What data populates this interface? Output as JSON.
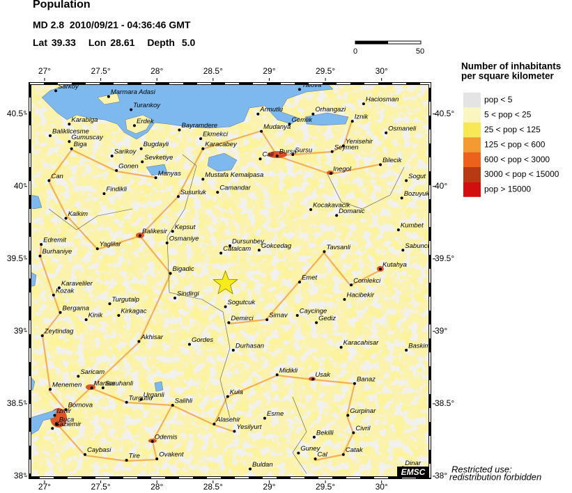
{
  "header": {
    "title": "Population",
    "event": "MD 2.8  2010/09/21 - 04:36:46 GMT",
    "lat_label": "Lat",
    "lat": 39.33,
    "lon_label": "Lon",
    "lon": 28.61,
    "depth_label": "Depth",
    "depth": "5.0"
  },
  "scale": {
    "labels": [
      "0",
      "50"
    ]
  },
  "map": {
    "lonlim": [
      26.87,
      30.43
    ],
    "latlim": [
      37.99,
      40.71
    ],
    "xticks": [
      {
        "value": 27,
        "label": "27°"
      },
      {
        "value": 27.5,
        "label": "27.5°"
      },
      {
        "value": 28,
        "label": "28°"
      },
      {
        "value": 28.5,
        "label": "28.5°"
      },
      {
        "value": 29,
        "label": "29°"
      },
      {
        "value": 29.5,
        "label": "29.5°"
      },
      {
        "value": 30,
        "label": "30°"
      }
    ],
    "yticks": [
      {
        "value": 38,
        "label": "38°"
      },
      {
        "value": 38.5,
        "label": "38.5°"
      },
      {
        "value": 39,
        "label": "39°"
      },
      {
        "value": 39.5,
        "label": "39.5°"
      },
      {
        "value": 40,
        "label": "40°"
      },
      {
        "value": 40.5,
        "label": "40.5°"
      }
    ]
  },
  "legend": {
    "title": [
      "Number of inhabitants",
      "per square kilometer"
    ],
    "items": [
      {
        "name": "pop < 5",
        "color": "#e4e4e4"
      },
      {
        "name": "5 < pop < 25",
        "color": "#fbf6bf"
      },
      {
        "name": "25 < pop < 125",
        "color": "#f8e855"
      },
      {
        "name": "125 < pop < 600",
        "color": "#f39a30"
      },
      {
        "name": "600 < pop < 3000",
        "color": "#ec621b"
      },
      {
        "name": "3000 < pop < 15000",
        "color": "#b73a12"
      },
      {
        "name": "pop > 15000",
        "color": "#d20f0f"
      }
    ]
  },
  "cities": [
    {
      "name": "Sarkoy",
      "lon": 27.1,
      "lat": 40.66
    },
    {
      "name": "Marmara Adasi",
      "lon": 27.57,
      "lat": 40.62
    },
    {
      "name": "Turankoy",
      "lon": 27.77,
      "lat": 40.53
    },
    {
      "name": "Karabiga",
      "lon": 27.22,
      "lat": 40.43
    },
    {
      "name": "Erdek",
      "lon": 27.8,
      "lat": 40.42
    },
    {
      "name": "Baliklicesme",
      "lon": 27.05,
      "lat": 40.35
    },
    {
      "name": "Gumuscay",
      "lon": 27.22,
      "lat": 40.31
    },
    {
      "name": "Biga",
      "lon": 27.24,
      "lat": 40.26
    },
    {
      "name": "Sarikoy",
      "lon": 27.6,
      "lat": 40.21
    },
    {
      "name": "Bugdayli",
      "lon": 27.86,
      "lat": 40.26
    },
    {
      "name": "Gonen",
      "lon": 27.64,
      "lat": 40.11
    },
    {
      "name": "Sevketiye",
      "lon": 27.87,
      "lat": 40.17
    },
    {
      "name": "Can",
      "lon": 27.04,
      "lat": 40.04
    },
    {
      "name": "Manyas",
      "lon": 27.99,
      "lat": 40.06
    },
    {
      "name": "Findikli",
      "lon": 27.53,
      "lat": 39.95
    },
    {
      "name": "Bayramdere",
      "lon": 28.2,
      "lat": 40.39
    },
    {
      "name": "Ekmekci",
      "lon": 28.39,
      "lat": 40.33
    },
    {
      "name": "Karacabey",
      "lon": 28.41,
      "lat": 40.26
    },
    {
      "name": "Armutlu",
      "lon": 28.9,
      "lat": 40.5
    },
    {
      "name": "Mudanya",
      "lon": 28.93,
      "lat": 40.38
    },
    {
      "name": "Gemlik",
      "lon": 29.18,
      "lat": 40.43
    },
    {
      "name": "Orhangazi",
      "lon": 29.39,
      "lat": 40.5
    },
    {
      "name": "Yalova",
      "lon": 29.27,
      "lat": 40.67
    },
    {
      "name": "Haciosman",
      "lon": 29.84,
      "lat": 40.57
    },
    {
      "name": "Iznik",
      "lon": 29.74,
      "lat": 40.45
    },
    {
      "name": "Osmaneli",
      "lon": 30.04,
      "lat": 40.37
    },
    {
      "name": "Bursa",
      "lon": 29.07,
      "lat": 40.21
    },
    {
      "name": "Cali",
      "lon": 28.92,
      "lat": 40.19
    },
    {
      "name": "Sursu",
      "lon": 29.21,
      "lat": 40.22
    },
    {
      "name": "Seymen",
      "lon": 29.56,
      "lat": 40.24
    },
    {
      "name": "Yenisehir",
      "lon": 29.66,
      "lat": 40.28
    },
    {
      "name": "Bilecik",
      "lon": 29.99,
      "lat": 40.15
    },
    {
      "name": "Inegol",
      "lon": 29.55,
      "lat": 40.09
    },
    {
      "name": "Mustafa Kemalpasa",
      "lon": 28.41,
      "lat": 40.05
    },
    {
      "name": "Camandar",
      "lon": 28.54,
      "lat": 39.96
    },
    {
      "name": "Susurluk",
      "lon": 28.19,
      "lat": 39.93
    },
    {
      "name": "Sogut",
      "lon": 30.22,
      "lat": 40.04
    },
    {
      "name": "Bozuyuk",
      "lon": 30.18,
      "lat": 39.92
    },
    {
      "name": "Kocakavacik",
      "lon": 29.37,
      "lat": 39.84
    },
    {
      "name": "Domanic",
      "lon": 29.6,
      "lat": 39.8
    },
    {
      "name": "Kalkim",
      "lon": 27.19,
      "lat": 39.78
    },
    {
      "name": "Kepsut",
      "lon": 28.14,
      "lat": 39.69
    },
    {
      "name": "Balikesir",
      "lon": 27.85,
      "lat": 39.66
    },
    {
      "name": "Osmaniye",
      "lon": 28.09,
      "lat": 39.61
    },
    {
      "name": "Kumbet",
      "lon": 30.15,
      "lat": 39.7
    },
    {
      "name": "Edremit",
      "lon": 26.97,
      "lat": 39.6
    },
    {
      "name": "Yaglilar",
      "lon": 27.47,
      "lat": 39.57
    },
    {
      "name": "Dursunbey",
      "lon": 28.65,
      "lat": 39.59
    },
    {
      "name": "Catalcam",
      "lon": 28.57,
      "lat": 39.54
    },
    {
      "name": "Gokcedag",
      "lon": 28.91,
      "lat": 39.56
    },
    {
      "name": "Tavsanli",
      "lon": 29.49,
      "lat": 39.55
    },
    {
      "name": "Sabuncu",
      "lon": 30.19,
      "lat": 39.56
    },
    {
      "name": "Burhaniye",
      "lon": 26.96,
      "lat": 39.52
    },
    {
      "name": "Kutahya",
      "lon": 29.99,
      "lat": 39.43
    },
    {
      "name": "Bigadic",
      "lon": 28.12,
      "lat": 39.4
    },
    {
      "name": "Emet",
      "lon": 29.27,
      "lat": 39.34
    },
    {
      "name": "Comlekci",
      "lon": 29.73,
      "lat": 39.32
    },
    {
      "name": "Karaveliler",
      "lon": 27.13,
      "lat": 39.3
    },
    {
      "name": "Kozak",
      "lon": 27.08,
      "lat": 39.25
    },
    {
      "name": "Sindirgi",
      "lon": 28.16,
      "lat": 39.23
    },
    {
      "name": "Hacibekir",
      "lon": 29.67,
      "lat": 39.22
    },
    {
      "name": "Turgutalp",
      "lon": 27.58,
      "lat": 39.19
    },
    {
      "name": "Sogutcuk",
      "lon": 28.61,
      "lat": 39.17
    },
    {
      "name": "Bergama",
      "lon": 27.14,
      "lat": 39.13
    },
    {
      "name": "Kinik",
      "lon": 27.37,
      "lat": 39.08
    },
    {
      "name": "Kirkagac",
      "lon": 27.66,
      "lat": 39.11
    },
    {
      "name": "Simav",
      "lon": 28.98,
      "lat": 39.08
    },
    {
      "name": "Caycinge",
      "lon": 29.25,
      "lat": 39.11
    },
    {
      "name": "Gediz",
      "lon": 29.42,
      "lat": 39.06
    },
    {
      "name": "Demirci",
      "lon": 28.64,
      "lat": 39.06
    },
    {
      "name": "Zeytindag",
      "lon": 26.98,
      "lat": 38.97
    },
    {
      "name": "Akhisar",
      "lon": 27.84,
      "lat": 38.93
    },
    {
      "name": "Gordes",
      "lon": 28.29,
      "lat": 38.91
    },
    {
      "name": "Durhasan",
      "lon": 28.68,
      "lat": 38.87
    },
    {
      "name": "Karacahisar",
      "lon": 29.64,
      "lat": 38.89
    },
    {
      "name": "Baskim",
      "lon": 30.22,
      "lat": 38.87
    },
    {
      "name": "Saricam",
      "lon": 27.3,
      "lat": 38.69
    },
    {
      "name": "Saruhanli",
      "lon": 27.52,
      "lat": 38.61
    },
    {
      "name": "Midikli",
      "lon": 29.07,
      "lat": 38.7
    },
    {
      "name": "Usak",
      "lon": 29.39,
      "lat": 38.67
    },
    {
      "name": "Banaz",
      "lon": 29.76,
      "lat": 38.64
    },
    {
      "name": "Menemen",
      "lon": 27.05,
      "lat": 38.6
    },
    {
      "name": "Manisa",
      "lon": 27.42,
      "lat": 38.61
    },
    {
      "name": "Kula",
      "lon": 28.63,
      "lat": 38.55
    },
    {
      "name": "Turgutlu",
      "lon": 27.73,
      "lat": 38.51
    },
    {
      "name": "Urganli",
      "lon": 27.86,
      "lat": 38.53
    },
    {
      "name": "Salihli",
      "lon": 28.14,
      "lat": 38.49
    },
    {
      "name": "Bornova",
      "lon": 27.19,
      "lat": 38.46
    },
    {
      "name": "Izmir",
      "lon": 27.09,
      "lat": 38.42
    },
    {
      "name": "Buca",
      "lon": 27.11,
      "lat": 38.36
    },
    {
      "name": "Gaziemir",
      "lon": 27.07,
      "lat": 38.33
    },
    {
      "name": "Gurpinar",
      "lon": 29.7,
      "lat": 38.42
    },
    {
      "name": "Esme",
      "lon": 28.96,
      "lat": 38.4
    },
    {
      "name": "Alasehir",
      "lon": 28.51,
      "lat": 38.36
    },
    {
      "name": "Yesilyurt",
      "lon": 28.69,
      "lat": 38.31
    },
    {
      "name": "Civril",
      "lon": 29.75,
      "lat": 38.3
    },
    {
      "name": "Odemis",
      "lon": 27.96,
      "lat": 38.24
    },
    {
      "name": "Bekilli",
      "lon": 29.4,
      "lat": 38.27
    },
    {
      "name": "Caybasi",
      "lon": 27.36,
      "lat": 38.15
    },
    {
      "name": "Tire",
      "lon": 27.73,
      "lat": 38.11
    },
    {
      "name": "Ovakent",
      "lon": 28.0,
      "lat": 38.12
    },
    {
      "name": "Guney",
      "lon": 29.26,
      "lat": 38.16
    },
    {
      "name": "Cal",
      "lon": 29.41,
      "lat": 38.12
    },
    {
      "name": "Catak",
      "lon": 29.66,
      "lat": 38.15
    },
    {
      "name": "Buldan",
      "lon": 28.83,
      "lat": 38.05
    },
    {
      "name": "Dinar",
      "lon": 30.19,
      "lat": 38.06
    }
  ],
  "footnote": [
    "Restricted use:",
    "redistribution forbidden"
  ],
  "logo": "EMSC"
}
